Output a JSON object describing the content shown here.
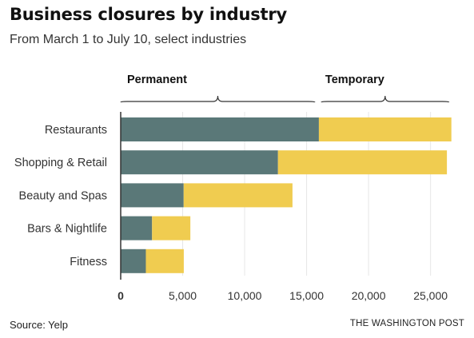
{
  "title": "Business closures by industry",
  "subtitle": "From March 1 to July 10, select industries",
  "source": "Source: Yelp",
  "credit": "THE WASHINGTON POST",
  "colors": {
    "permanent": "#5a7878",
    "temporary": "#f0cc50",
    "grid": "#e6e6e6",
    "axis": "#333333"
  },
  "chart_data": {
    "type": "bar",
    "orientation": "horizontal",
    "stacked": true,
    "categories": [
      "Restaurants",
      "Shopping & Retail",
      "Beauty and Spas",
      "Bars & Nightlife",
      "Fitness"
    ],
    "series": [
      {
        "name": "Permanent",
        "values": [
          15990,
          12690,
          5080,
          2530,
          2030
        ]
      },
      {
        "name": "Temporary",
        "values": [
          10690,
          13630,
          8780,
          3090,
          3060
        ]
      }
    ],
    "xlim": [
      0,
      26700
    ],
    "xticks": [
      0,
      5000,
      10000,
      15000,
      20000,
      25000
    ],
    "xtick_labels": [
      "0",
      "5,000",
      "10,000",
      "15,000",
      "20,000",
      "25,000"
    ],
    "grid": "vertical",
    "legend": "top"
  }
}
